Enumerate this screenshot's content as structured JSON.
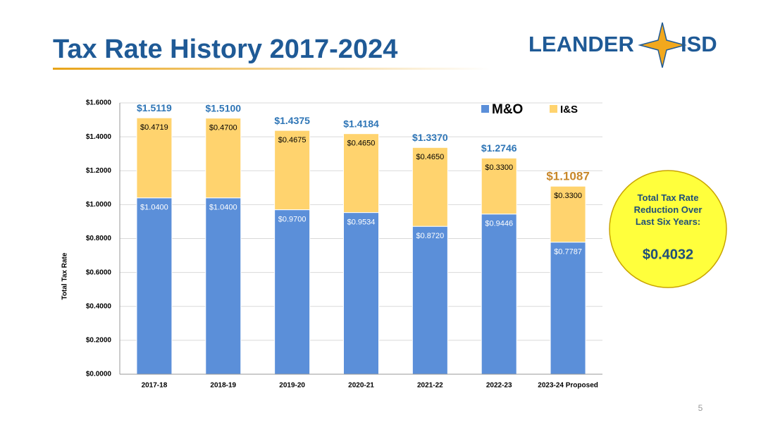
{
  "header": {
    "title": "Tax Rate History 2017-2024",
    "logo_left": "LEANDER",
    "logo_right": "ISD"
  },
  "chart_data": {
    "type": "stacked-bar",
    "y_label": "Total Tax Rate",
    "categories": [
      "2017-18",
      "2018-19",
      "2019-20",
      "2020-21",
      "2021-22",
      "2022-23",
      "2023-24 Proposed"
    ],
    "series": [
      {
        "name": "M&O",
        "color": "#5b8fd9",
        "values": [
          1.04,
          1.04,
          0.97,
          0.9534,
          0.872,
          0.9446,
          0.7787
        ],
        "value_labels": [
          "$1.0400",
          "$1.0400",
          "$0.9700",
          "$0.9534",
          "$0.8720",
          "$0.9446",
          "$0.7787"
        ]
      },
      {
        "name": "I&S",
        "color": "#ffd36e",
        "values": [
          0.4719,
          0.47,
          0.4675,
          0.465,
          0.465,
          0.33,
          0.33
        ],
        "value_labels": [
          "$0.4719",
          "$0.4700",
          "$0.4675",
          "$0.4650",
          "$0.4650",
          "$0.3300",
          "$0.3300"
        ]
      }
    ],
    "totals": {
      "values": [
        1.5119,
        1.51,
        1.4375,
        1.4184,
        1.337,
        1.2746,
        1.1087
      ],
      "value_labels": [
        "$1.5119",
        "$1.5100",
        "$1.4375",
        "$1.4184",
        "$1.3370",
        "$1.2746",
        "$1.1087"
      ],
      "colors": [
        "#2e75b6",
        "#2e75b6",
        "#2e75b6",
        "#2e75b6",
        "#2e75b6",
        "#2e75b6",
        "#c8872a"
      ]
    },
    "ylim": [
      0,
      1.6
    ],
    "yticks": [
      {
        "value": 0,
        "label": "$0.0000"
      },
      {
        "value": 0.2,
        "label": "$0.2000"
      },
      {
        "value": 0.4,
        "label": "$0.4000"
      },
      {
        "value": 0.6,
        "label": "$0.6000"
      },
      {
        "value": 0.8,
        "label": "$0.8000"
      },
      {
        "value": 1.0,
        "label": "$1.0000"
      },
      {
        "value": 1.2,
        "label": "$1.2000"
      },
      {
        "value": 1.4,
        "label": "$1.4000"
      },
      {
        "value": 1.6,
        "label": "$1.6000"
      }
    ],
    "grid": true,
    "legend": "top-right"
  },
  "callout": {
    "text": "Total Tax Rate Reduction Over Last Six Years:",
    "value": 0.4032,
    "value_label": "$0.4032"
  },
  "page_number": "5"
}
